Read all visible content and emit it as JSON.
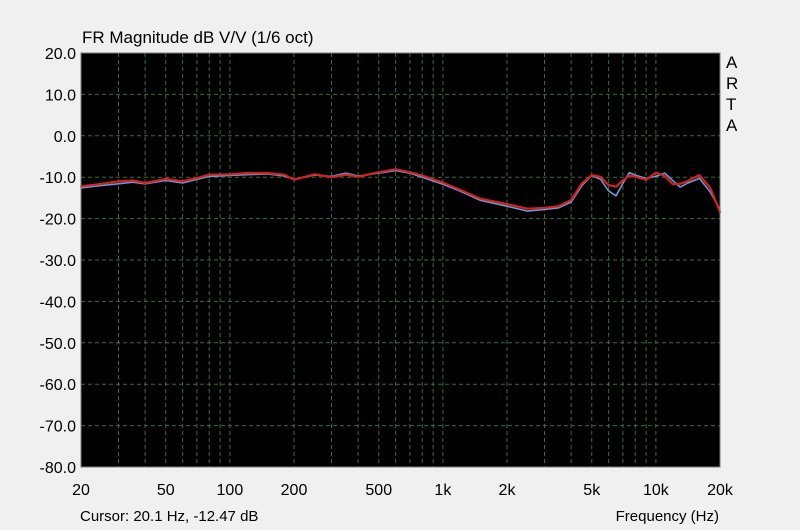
{
  "window": {
    "background": "#f0f0f0"
  },
  "status": {
    "cursor": "Cursor: 20.1 Hz, -12.47 dB",
    "frequency_label": "Frequency (Hz)"
  },
  "chart_data": {
    "type": "line",
    "title": "FR Magnitude dB V/V (1/6 oct)",
    "watermark": "ARTA",
    "xlabel": "Frequency (Hz)",
    "ylabel": "",
    "xscale": "log",
    "xlim": [
      20,
      20000
    ],
    "ylim": [
      -80,
      20
    ],
    "grid": true,
    "y_ticks": [
      {
        "value": 20,
        "label": "20.0"
      },
      {
        "value": 10,
        "label": "10.0"
      },
      {
        "value": 0,
        "label": "0.0"
      },
      {
        "value": -10,
        "label": "-10.0"
      },
      {
        "value": -20,
        "label": "-20.0"
      },
      {
        "value": -30,
        "label": "-30.0"
      },
      {
        "value": -40,
        "label": "-40.0"
      },
      {
        "value": -50,
        "label": "-50.0"
      },
      {
        "value": -60,
        "label": "-60.0"
      },
      {
        "value": -70,
        "label": "-70.0"
      },
      {
        "value": -80,
        "label": "-80.0"
      }
    ],
    "x_ticks": [
      {
        "value": 20,
        "label": "20"
      },
      {
        "value": 50,
        "label": "50"
      },
      {
        "value": 100,
        "label": "100"
      },
      {
        "value": 200,
        "label": "200"
      },
      {
        "value": 500,
        "label": "500"
      },
      {
        "value": 1000,
        "label": "1k"
      },
      {
        "value": 2000,
        "label": "2k"
      },
      {
        "value": 5000,
        "label": "5k"
      },
      {
        "value": 10000,
        "label": "10k"
      },
      {
        "value": 20000,
        "label": "20k"
      }
    ],
    "colors": {
      "plot_background": "#000000",
      "grid": "#3a6e3a",
      "frame": "#7a7a7a"
    },
    "series": [
      {
        "color": "#6a9ad8",
        "x": [
          20,
          25,
          30,
          35,
          40,
          50,
          60,
          70,
          80,
          100,
          120,
          150,
          180,
          200,
          250,
          300,
          350,
          400,
          500,
          600,
          700,
          800,
          1000,
          1200,
          1500,
          2000,
          2500,
          3000,
          3500,
          4000,
          4500,
          5000,
          5500,
          6000,
          6500,
          7000,
          7500,
          8000,
          9000,
          10000,
          11000,
          12000,
          13000,
          14000,
          16000,
          18000,
          20000
        ],
        "y": [
          -12.6,
          -12.0,
          -11.6,
          -11.2,
          -11.6,
          -10.8,
          -11.4,
          -10.5,
          -9.8,
          -9.6,
          -9.4,
          -9.2,
          -9.7,
          -10.5,
          -9.5,
          -9.8,
          -9.0,
          -9.7,
          -9.0,
          -8.4,
          -9.0,
          -10.0,
          -11.7,
          -13.3,
          -15.6,
          -17.0,
          -18.2,
          -17.8,
          -17.4,
          -16.0,
          -12.0,
          -9.6,
          -10.5,
          -13.3,
          -14.5,
          -11.5,
          -8.9,
          -9.5,
          -10.3,
          -9.8,
          -9.0,
          -10.8,
          -12.4,
          -11.5,
          -10.3,
          -13.6,
          -17.8
        ]
      },
      {
        "color": "#d82020",
        "x": [
          20,
          25,
          30,
          35,
          40,
          50,
          60,
          70,
          80,
          100,
          120,
          150,
          180,
          200,
          250,
          300,
          350,
          400,
          500,
          600,
          700,
          800,
          1000,
          1200,
          1500,
          2000,
          2500,
          3000,
          3500,
          4000,
          4500,
          5000,
          5500,
          6000,
          6500,
          7000,
          7500,
          8000,
          9000,
          10000,
          11000,
          12000,
          13000,
          14000,
          16000,
          18000,
          20000
        ],
        "y": [
          -12.2,
          -11.6,
          -11.0,
          -10.8,
          -11.4,
          -10.4,
          -11.0,
          -10.2,
          -9.4,
          -9.3,
          -9.0,
          -9.0,
          -9.4,
          -10.6,
          -9.3,
          -10.0,
          -9.4,
          -9.9,
          -8.8,
          -8.1,
          -8.8,
          -9.6,
          -11.3,
          -13.0,
          -15.2,
          -16.5,
          -17.6,
          -17.4,
          -17.0,
          -15.5,
          -11.5,
          -9.5,
          -9.9,
          -11.9,
          -12.3,
          -10.8,
          -9.6,
          -9.9,
          -10.6,
          -8.9,
          -9.7,
          -11.7,
          -11.6,
          -11.0,
          -9.5,
          -12.6,
          -18.4
        ]
      }
    ]
  }
}
